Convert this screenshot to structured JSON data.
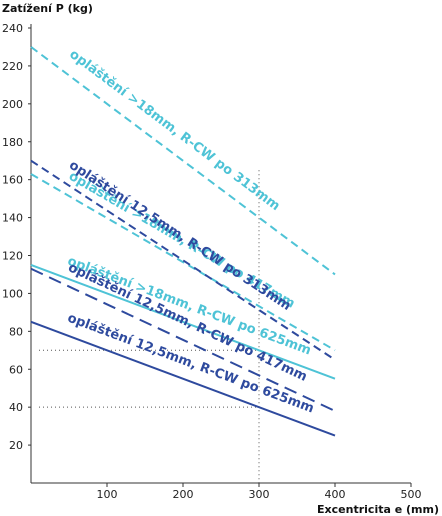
{
  "chart_data": {
    "type": "line",
    "ylabel": "Zatížení P (kg)",
    "xlabel": "Excentricita e (mm)",
    "xlim": [
      0,
      500
    ],
    "ylim": [
      0,
      240
    ],
    "x_ticks": [
      100,
      200,
      300,
      400,
      500
    ],
    "y_ticks": [
      20,
      40,
      60,
      80,
      100,
      120,
      140,
      160,
      180,
      200,
      220,
      240
    ],
    "grid": false,
    "reference_lines": {
      "vertical_x": [
        300
      ],
      "horizontal_y": [
        70,
        40
      ]
    },
    "series": [
      {
        "name": "opláštění >18mm, R-CW po  313mm",
        "x": [
          0,
          400
        ],
        "y": [
          230,
          110
        ],
        "color": "#4ec3d6",
        "dash": "dashed"
      },
      {
        "name": "opláštění >18mm, R-CW po 417mm",
        "x": [
          0,
          400
        ],
        "y": [
          163,
          70
        ],
        "color": "#4ec3d6",
        "dash": "dashed"
      },
      {
        "name": "opláštění 12,5mm, R-CW po 313mm",
        "x": [
          0,
          400
        ],
        "y": [
          170,
          65
        ],
        "color": "#2e4a9e",
        "dash": "dashed"
      },
      {
        "name": "opláštění >18mm, R-CW po 625mm",
        "x": [
          0,
          400
        ],
        "y": [
          115,
          55
        ],
        "color": "#4ec3d6",
        "dash": "solid"
      },
      {
        "name": "opláštění 12,5mm, R-CW po 417mm",
        "x": [
          0,
          400
        ],
        "y": [
          113,
          38
        ],
        "color": "#2e4a9e",
        "dash": "longdash"
      },
      {
        "name": "opláštění 12,5mm, R-CW po 625mm",
        "x": [
          0,
          400
        ],
        "y": [
          85,
          25
        ],
        "color": "#2e4a9e",
        "dash": "solid"
      }
    ]
  }
}
